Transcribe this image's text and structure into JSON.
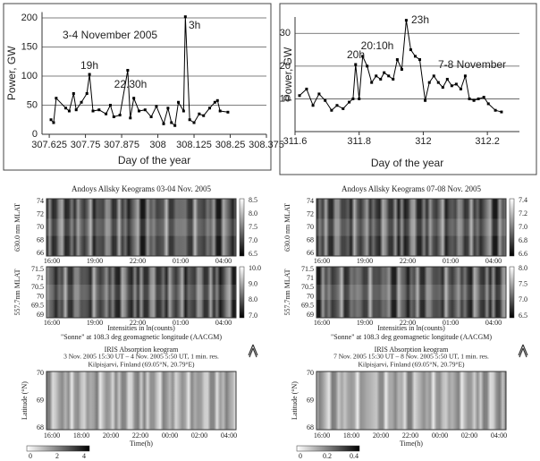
{
  "chart_data": [
    {
      "type": "line",
      "xlabel": "Day of the year",
      "ylabel": "Power, GW",
      "annotations": [
        "3-4 November 2005",
        "19h",
        "22.30h",
        "3h"
      ],
      "xlim": [
        307.6,
        308.375
      ],
      "xticks": [
        307.625,
        307.75,
        307.875,
        308,
        308.125,
        308.25,
        308.375
      ],
      "ylim": [
        0,
        210
      ],
      "yticks": [
        0,
        50,
        100,
        150,
        200
      ],
      "grid": true,
      "color": "#000000",
      "x": [
        307.631,
        307.64,
        307.649,
        307.682,
        307.694,
        307.709,
        307.718,
        307.736,
        307.755,
        307.764,
        307.776,
        307.797,
        307.821,
        307.836,
        307.848,
        307.869,
        307.896,
        307.905,
        307.917,
        307.935,
        307.956,
        307.977,
        307.995,
        308.02,
        308.035,
        308.047,
        308.059,
        308.071,
        308.089,
        308.095,
        308.11,
        308.125,
        308.143,
        308.158,
        308.179,
        308.197,
        308.206,
        308.215,
        308.242
      ],
      "values": [
        25,
        20,
        62,
        45,
        40,
        70,
        42,
        55,
        70,
        103,
        40,
        42,
        35,
        50,
        30,
        33,
        110,
        28,
        62,
        40,
        42,
        30,
        48,
        18,
        45,
        20,
        15,
        55,
        40,
        202,
        25,
        20,
        35,
        32,
        45,
        55,
        58,
        40,
        38
      ]
    },
    {
      "type": "line",
      "xlabel": "Day of the year",
      "ylabel": "Power, GW",
      "annotations": [
        "20h",
        "20:10h",
        "23h",
        "7-8 November"
      ],
      "xlim": [
        311.6,
        312.3
      ],
      "xticks": [
        311.6,
        311.8,
        312,
        312.2
      ],
      "ylim": [
        0,
        35
      ],
      "yticks": [
        10,
        20,
        30
      ],
      "grid": true,
      "color": "#000000",
      "x": [
        311.614,
        311.636,
        311.656,
        311.675,
        311.694,
        311.714,
        311.731,
        311.75,
        311.769,
        311.781,
        311.789,
        311.8,
        311.811,
        311.825,
        311.839,
        311.853,
        311.867,
        311.878,
        311.892,
        311.906,
        311.919,
        311.933,
        311.947,
        311.961,
        311.975,
        311.989,
        312.006,
        312.019,
        312.033,
        312.047,
        312.061,
        312.075,
        312.089,
        312.103,
        312.117,
        312.131,
        312.144,
        312.158,
        312.172,
        312.189,
        312.203,
        312.225,
        312.244
      ],
      "values": [
        11,
        13,
        8,
        11.5,
        9.5,
        6.5,
        8,
        7,
        9,
        10,
        20.5,
        10,
        23,
        20,
        15,
        17,
        16,
        18,
        17,
        16,
        22,
        19,
        34,
        25,
        23,
        22,
        9.5,
        15,
        17,
        15,
        13.5,
        16,
        14,
        14.5,
        13,
        17,
        10,
        9.5,
        10,
        10.5,
        8.5,
        6.5,
        6
      ]
    }
  ],
  "keograms": [
    {
      "title": "Andoys Allsky Keograms 03-04 Nov. 2005",
      "panels": [
        {
          "ylabel": "630.0 nm MLAT",
          "yticks": [
            "74",
            "72",
            "70",
            "68",
            "66"
          ],
          "cbticks": [
            "8.5",
            "8.0",
            "7.5",
            "7.0",
            "6.5"
          ]
        },
        {
          "ylabel": "557.7nm MLAT",
          "yticks": [
            "71.5",
            "71",
            "70.5",
            "70",
            "69.5",
            "69"
          ],
          "cbticks": [
            "10.0",
            "9.0",
            "8.0",
            "7.0"
          ]
        }
      ],
      "xticks": [
        "16:00",
        "19:00",
        "22:00",
        "01:00",
        "04:00"
      ],
      "note1": "Intensities in ln(counts)",
      "note2": "\"Sonne\" at 108.3 deg geomagnetic longitude (AACGM)"
    },
    {
      "title": "Andoys Allsky Keograms 07-08 Nov. 2005",
      "panels": [
        {
          "ylabel": "630.0 nm MLAT",
          "yticks": [
            "74",
            "72",
            "70",
            "68",
            "66"
          ],
          "cbticks": [
            "7.4",
            "7.2",
            "7.0",
            "6.8",
            "6.6"
          ]
        },
        {
          "ylabel": "557.7nm MLAT",
          "yticks": [
            "71.5",
            "71",
            "70.5",
            "70",
            "69.5",
            "69"
          ],
          "cbticks": [
            "8.0",
            "7.5",
            "7.0",
            "6.5"
          ]
        }
      ],
      "xticks": [
        "16:00",
        "19:00",
        "22:00",
        "01:00",
        "04:00"
      ],
      "note1": "Intensities in ln(counts)",
      "note2": "\"Sonne\" at 108.3 deg geomagnetic longitude (AACGM)"
    }
  ],
  "iris": [
    {
      "title": "IRIS Absorption keogram",
      "line2": "3 Nov. 2005 15:30 UT – 4 Nov. 2005 5:50 UT,  1 min. res.",
      "line3": "Kilpisjarvi, Finland (69.05°N, 20.79°E)",
      "ylabel": "Latitude (°N)",
      "yticks": [
        "70",
        "69",
        "68"
      ],
      "xticks": [
        "16:00",
        "18:00",
        "20:00",
        "22:00",
        "00:00",
        "02:00",
        "04:00"
      ],
      "xlabel": "Time(h)",
      "cbticks": [
        "0",
        "2",
        "4"
      ]
    },
    {
      "title": "IRIS Absorption keogram",
      "line2": "7 Nov. 2005 15:30 UT – 8 Nov. 2005 5:50 UT,  1 min. res.",
      "line3": "Kilpisjarvi, Finland (69.05°N, 20.79°E)",
      "ylabel": "Latitude (°N)",
      "yticks": [
        "70",
        "69",
        "68"
      ],
      "xticks": [
        "16:00",
        "18:00",
        "20:00",
        "22:00",
        "00:00",
        "02:00",
        "04:00"
      ],
      "xlabel": "Time(h)",
      "cbticks": [
        "0",
        "0.2",
        "0.4"
      ]
    }
  ]
}
